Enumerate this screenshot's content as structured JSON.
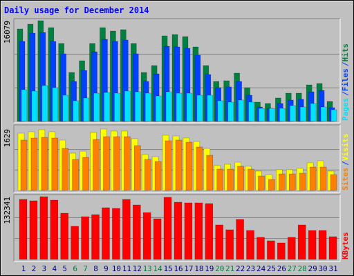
{
  "chart_data": [
    {
      "type": "bar",
      "title": "Daily usage for December 2014",
      "ylim": [
        0,
        16079
      ],
      "yticks": [
        16079
      ],
      "legend_separator": "/",
      "series": [
        {
          "name": "Hits",
          "color": "#008040",
          "values": [
            14757,
            15528,
            16079,
            14978,
            12445,
            7819,
            9691,
            12445,
            14978,
            14427,
            14647,
            12445,
            7819,
            8920,
            13656,
            13876,
            13546,
            11894,
            8920,
            6387,
            6498,
            7709,
            5396,
            3084,
            2863,
            3744,
            4515,
            4515,
            5837,
            6057,
            3194
          ]
        },
        {
          "name": "Files",
          "color": "#0040FF",
          "values": [
            12775,
            14096,
            14207,
            12775,
            10793,
            6387,
            8150,
            11123,
            13105,
            12775,
            12995,
            10793,
            6387,
            7599,
            12004,
            11894,
            11674,
            10572,
            7489,
            5396,
            5507,
            6387,
            4185,
            2313,
            2092,
            2863,
            3414,
            3524,
            4736,
            4956,
            2203
          ]
        },
        {
          "name": "Pages",
          "color": "#00E0FF",
          "values": [
            5066,
            4846,
            5727,
            5396,
            4185,
            3304,
            3744,
            4515,
            4625,
            4515,
            4846,
            4736,
            4515,
            4075,
            4736,
            4515,
            4515,
            4185,
            4185,
            3304,
            3084,
            3414,
            3084,
            2092,
            2092,
            2092,
            2533,
            2313,
            2863,
            2313,
            1872
          ]
        }
      ]
    },
    {
      "type": "bar",
      "ylim": [
        0,
        1629
      ],
      "yticks": [
        1629
      ],
      "series": [
        {
          "name": "Visits",
          "color": "#FFFF00",
          "values": [
            1519,
            1556,
            1610,
            1556,
            1336,
            988,
            1043,
            1537,
            1629,
            1574,
            1574,
            1373,
            952,
            897,
            1464,
            1446,
            1391,
            1299,
            1116,
            659,
            695,
            750,
            641,
            512,
            421,
            549,
            549,
            586,
            732,
            787,
            512
          ]
        },
        {
          "name": "Sites",
          "color": "#FF8000",
          "values": [
            1336,
            1391,
            1409,
            1391,
            1116,
            824,
            878,
            1354,
            1427,
            1427,
            1427,
            1190,
            824,
            769,
            1318,
            1336,
            1281,
            1153,
            933,
            567,
            567,
            641,
            567,
            384,
            293,
            439,
            439,
            458,
            622,
            622,
            421
          ]
        }
      ]
    },
    {
      "type": "bar",
      "ylim": [
        0,
        132341
      ],
      "yticks": [
        132341
      ],
      "categories": [
        "1",
        "2",
        "3",
        "4",
        "5",
        "6",
        "7",
        "8",
        "9",
        "10",
        "11",
        "12",
        "13",
        "14",
        "15",
        "16",
        "17",
        "18",
        "19",
        "20",
        "21",
        "22",
        "23",
        "24",
        "25",
        "26",
        "27",
        "28",
        "29",
        "30",
        "31"
      ],
      "category_colors": [
        "#000080",
        "#000080",
        "#000080",
        "#000080",
        "#000080",
        "#008040",
        "#008040",
        "#000080",
        "#000080",
        "#000080",
        "#000080",
        "#000080",
        "#008040",
        "#008040",
        "#000080",
        "#000080",
        "#000080",
        "#000080",
        "#000080",
        "#008040",
        "#008040",
        "#000080",
        "#000080",
        "#000080",
        "#000080",
        "#000080",
        "#008040",
        "#008040",
        "#000080",
        "#000080",
        "#000080"
      ],
      "series": [
        {
          "name": "KBytes",
          "color": "#FF0000",
          "values": [
            126524,
            123616,
            132341,
            125070,
            97438,
            69806,
            90167,
            94530,
            109073,
            107618,
            126524,
            114890,
            98892,
            85804,
            130887,
            120707,
            119253,
            119253,
            117798,
            72715,
            62535,
            84349,
            61081,
            46538,
            39266,
            34903,
            46538,
            72715,
            61081,
            61081,
            47992
          ]
        }
      ]
    }
  ]
}
